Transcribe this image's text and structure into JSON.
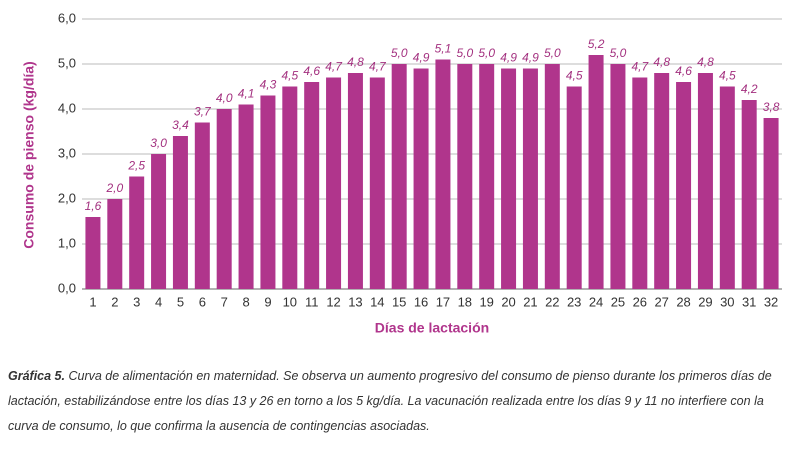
{
  "chart_data": {
    "type": "bar",
    "x_label": "Días de lactación",
    "y_label": "Consumo de pienso (kg/día)",
    "categories": [
      "1",
      "2",
      "3",
      "4",
      "5",
      "6",
      "7",
      "8",
      "9",
      "10",
      "11",
      "12",
      "13",
      "14",
      "15",
      "16",
      "17",
      "18",
      "19",
      "20",
      "21",
      "22",
      "23",
      "24",
      "25",
      "26",
      "27",
      "28",
      "29",
      "30",
      "31",
      "32"
    ],
    "values": [
      1.6,
      2.0,
      2.5,
      3.0,
      3.4,
      3.7,
      4.0,
      4.1,
      4.3,
      4.5,
      4.6,
      4.7,
      4.8,
      4.7,
      5.0,
      4.9,
      5.1,
      5.0,
      5.0,
      4.9,
      4.9,
      5.0,
      4.5,
      5.2,
      5.0,
      4.7,
      4.8,
      4.6,
      4.8,
      4.5,
      4.2,
      3.8
    ],
    "value_labels": [
      "1,6",
      "2,0",
      "2,5",
      "3,0",
      "3,4",
      "3,7",
      "4,0",
      "4,1",
      "4,3",
      "4,5",
      "4,6",
      "4,7",
      "4,8",
      "4,7",
      "5,0",
      "4,9",
      "5,1",
      "5,0",
      "5,0",
      "4,9",
      "4,9",
      "5,0",
      "4,5",
      "5,2",
      "5,0",
      "4,7",
      "4,8",
      "4,6",
      "4,8",
      "4,5",
      "4,2",
      "3,8"
    ],
    "color": "#b0358c",
    "ylim": [
      0,
      6
    ],
    "yticks": [
      {
        "value": 0,
        "label": "0,0"
      },
      {
        "value": 1,
        "label": "1,0"
      },
      {
        "value": 2,
        "label": "2,0"
      },
      {
        "value": 3,
        "label": "3,0"
      },
      {
        "value": 4,
        "label": "4,0"
      },
      {
        "value": 5,
        "label": "5,0"
      },
      {
        "value": 6,
        "label": "6,0"
      }
    ],
    "grid": true
  },
  "caption": {
    "label": "Gráfica 5.",
    "lines": [
      "Curva de alimentación en maternidad. Se observa un aumento progresivo del consumo de pienso durante los primeros días de",
      "lactación, estabilizándose entre los días 13 y 26 en torno a los 5 kg/día. La vacunación realizada entre los días 9 y 11 no interfiere con la",
      "curva de consumo, lo que confirma la ausencia de contingencias asociadas."
    ]
  }
}
